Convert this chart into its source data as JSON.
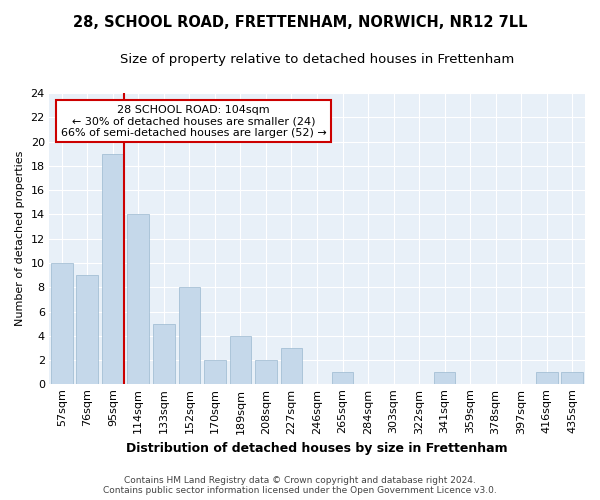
{
  "title": "28, SCHOOL ROAD, FRETTENHAM, NORWICH, NR12 7LL",
  "subtitle": "Size of property relative to detached houses in Frettenham",
  "xlabel": "Distribution of detached houses by size in Frettenham",
  "ylabel": "Number of detached properties",
  "categories": [
    "57sqm",
    "76sqm",
    "95sqm",
    "114sqm",
    "133sqm",
    "152sqm",
    "170sqm",
    "189sqm",
    "208sqm",
    "227sqm",
    "246sqm",
    "265sqm",
    "284sqm",
    "303sqm",
    "322sqm",
    "341sqm",
    "359sqm",
    "378sqm",
    "397sqm",
    "416sqm",
    "435sqm"
  ],
  "values": [
    10,
    9,
    19,
    14,
    5,
    8,
    2,
    4,
    2,
    3,
    0,
    1,
    0,
    0,
    0,
    1,
    0,
    0,
    0,
    1,
    1
  ],
  "bar_color": "#c5d8ea",
  "bar_edge_color": "#9bb8d0",
  "subject_line_color": "#cc0000",
  "subject_bar_index": 2,
  "annotation_line1": "28 SCHOOL ROAD: 104sqm",
  "annotation_line2": "← 30% of detached houses are smaller (24)",
  "annotation_line3": "66% of semi-detached houses are larger (52) →",
  "annotation_box_facecolor": "#ffffff",
  "annotation_box_edgecolor": "#cc0000",
  "ylim": [
    0,
    24
  ],
  "yticks": [
    0,
    2,
    4,
    6,
    8,
    10,
    12,
    14,
    16,
    18,
    20,
    22,
    24
  ],
  "footer_line1": "Contains HM Land Registry data © Crown copyright and database right 2024.",
  "footer_line2": "Contains public sector information licensed under the Open Government Licence v3.0.",
  "bg_color": "#e8f0f8",
  "grid_color": "#ffffff",
  "title_fontsize": 10.5,
  "subtitle_fontsize": 9.5,
  "xlabel_fontsize": 9,
  "ylabel_fontsize": 8,
  "tick_fontsize": 8,
  "footer_fontsize": 6.5,
  "annot_fontsize": 8
}
